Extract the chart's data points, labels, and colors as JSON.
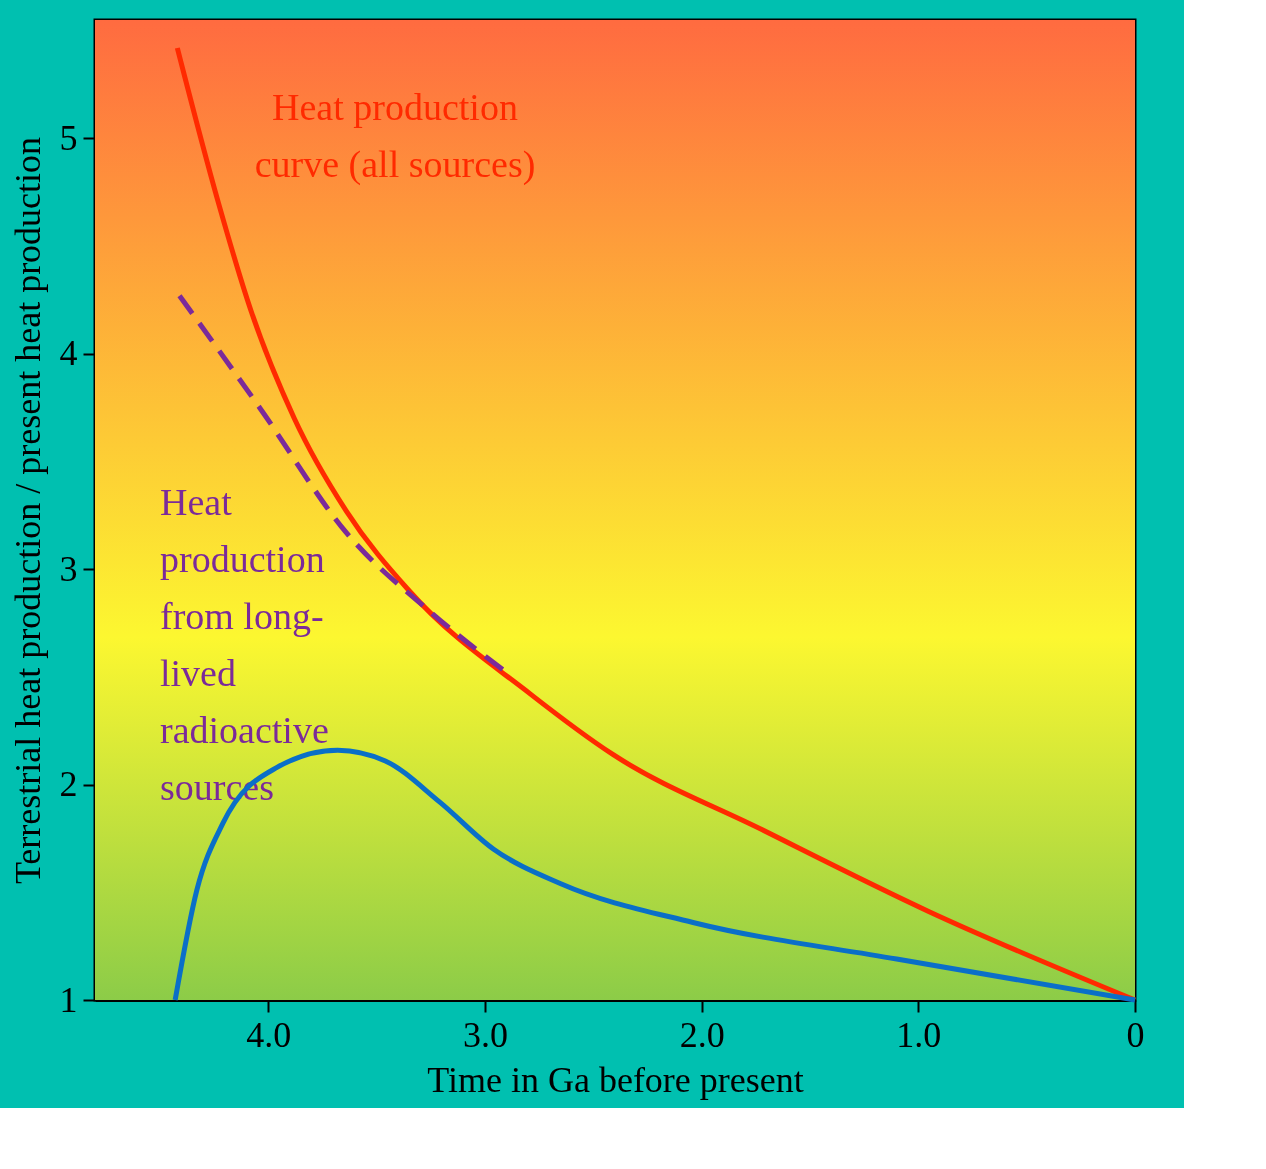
{
  "chart_data": {
    "type": "line",
    "xlabel": "Time in Ga before present",
    "ylabel": "Terrestrial heat production / present heat production",
    "xlim": [
      4.8,
      0
    ],
    "ylim": [
      1,
      5.55
    ],
    "xticks": [
      {
        "value": 4,
        "label": "4.0"
      },
      {
        "value": 3,
        "label": "3.0"
      },
      {
        "value": 2,
        "label": "2.0"
      },
      {
        "value": 1,
        "label": "1.0"
      },
      0
    ],
    "yticks": [
      1,
      2,
      3,
      4,
      5
    ],
    "grid": false,
    "series": [
      {
        "name": "Heat production curve (all sources)",
        "color": "#ff2a00",
        "line_style": "solid",
        "x": [
          4.42,
          4.23,
          4.08,
          3.88,
          3.64,
          3.35,
          2.79,
          2.41,
          1.72,
          0.95,
          0
        ],
        "values": [
          5.42,
          4.7,
          4.2,
          3.7,
          3.27,
          2.9,
          2.42,
          2.14,
          1.79,
          1.41,
          1.0
        ]
      },
      {
        "name": "Heat production from long-lived radioactive sources",
        "color": "#7b2a9a",
        "line_style": "dashed",
        "x": [
          4.41,
          4.04,
          3.64,
          3.25,
          2.9
        ],
        "values": [
          4.27,
          3.75,
          3.17,
          2.8,
          2.52
        ]
      },
      {
        "color": "#0a6fc8",
        "line_style": "solid",
        "x": [
          4.43,
          4.33,
          4.21,
          3.96,
          3.68,
          3.46,
          3.21,
          2.96,
          2.65,
          2.04,
          1.1,
          0
        ],
        "values": [
          1.0,
          1.51,
          1.82,
          2.08,
          2.16,
          2.11,
          1.92,
          1.7,
          1.54,
          1.36,
          1.19,
          1.0
        ]
      }
    ]
  }
}
